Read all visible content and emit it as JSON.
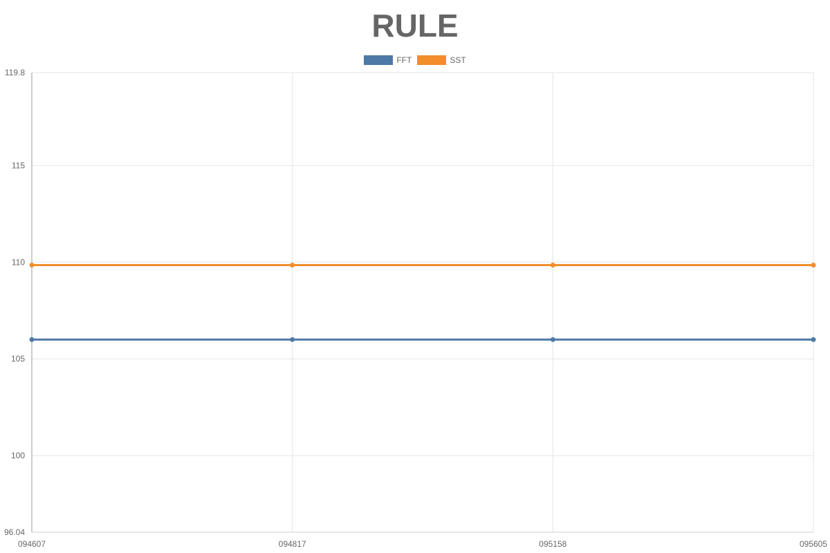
{
  "chart_data": {
    "type": "line",
    "title": "RULE",
    "categories": [
      "094607",
      "094817",
      "095158",
      "095605"
    ],
    "series": [
      {
        "name": "FFT",
        "values": [
          106.0,
          106.0,
          106.0,
          106.0
        ],
        "color": "#4e79a7"
      },
      {
        "name": "SST",
        "values": [
          109.85,
          109.85,
          109.85,
          109.85
        ],
        "color": "#f28e2b"
      }
    ],
    "ylim": [
      96.04,
      119.8
    ],
    "y_ticks": [
      "96.04",
      "100",
      "105",
      "110",
      "115",
      "119.8"
    ],
    "grid": true,
    "legend_position": "top-center",
    "xlabel": "",
    "ylabel": ""
  }
}
